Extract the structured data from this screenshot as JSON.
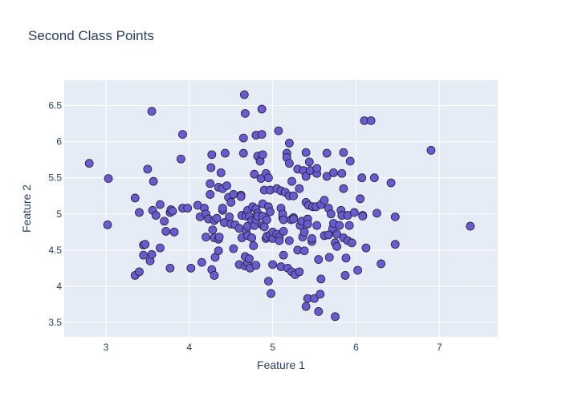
{
  "chart_data": {
    "type": "scatter",
    "title": "Second Class Points",
    "xlabel": "Feature 1",
    "ylabel": "Feature 2",
    "xlim": [
      2.5,
      7.7
    ],
    "ylim": [
      3.3,
      6.85
    ],
    "xticks": [
      3,
      4,
      5,
      6,
      7
    ],
    "yticks": [
      3.5,
      4,
      4.5,
      5,
      5.5,
      6,
      6.5
    ],
    "grid": true,
    "legend": "none",
    "colors": {
      "plot_bg": "#e5ecf6",
      "marker": "#6a5acd",
      "marker_edge": "#1f1f3a",
      "text": "#2a3f5f"
    },
    "series": [
      {
        "points": [
          [
            2.8,
            5.7
          ],
          [
            3.02,
            4.85
          ],
          [
            3.03,
            5.49
          ],
          [
            3.35,
            5.22
          ],
          [
            3.35,
            4.15
          ],
          [
            3.4,
            4.2
          ],
          [
            3.4,
            5.02
          ],
          [
            3.45,
            4.43
          ],
          [
            3.45,
            4.57
          ],
          [
            3.47,
            4.58
          ],
          [
            3.5,
            5.62
          ],
          [
            3.53,
            4.35
          ],
          [
            3.55,
            6.42
          ],
          [
            3.55,
            4.44
          ],
          [
            3.56,
            5.05
          ],
          [
            3.57,
            5.45
          ],
          [
            3.6,
            4.98
          ],
          [
            3.65,
            4.53
          ],
          [
            3.65,
            5.13
          ],
          [
            3.7,
            4.9
          ],
          [
            3.72,
            4.76
          ],
          [
            3.77,
            4.25
          ],
          [
            3.77,
            5.02
          ],
          [
            3.78,
            5.06
          ],
          [
            3.8,
            5.04
          ],
          [
            3.82,
            4.75
          ],
          [
            3.9,
            5.76
          ],
          [
            3.92,
            6.1
          ],
          [
            3.92,
            5.08
          ],
          [
            3.98,
            5.08
          ],
          [
            4.02,
            4.25
          ],
          [
            4.1,
            5.12
          ],
          [
            4.13,
            4.96
          ],
          [
            4.15,
            4.33
          ],
          [
            4.18,
            5.08
          ],
          [
            4.2,
            4.68
          ],
          [
            4.2,
            5.0
          ],
          [
            4.23,
            4.93
          ],
          [
            4.25,
            5.27
          ],
          [
            4.25,
            5.42
          ],
          [
            4.26,
            5.64
          ],
          [
            4.27,
            5.82
          ],
          [
            4.27,
            4.23
          ],
          [
            4.28,
            4.78
          ],
          [
            4.3,
            4.91
          ],
          [
            4.3,
            4.67
          ],
          [
            4.3,
            4.15
          ],
          [
            4.31,
            4.4
          ],
          [
            4.33,
            4.94
          ],
          [
            4.35,
            5.37
          ],
          [
            4.35,
            4.49
          ],
          [
            4.35,
            4.65
          ],
          [
            4.36,
            4.68
          ],
          [
            4.38,
            5.57
          ],
          [
            4.4,
            5.05
          ],
          [
            4.4,
            5.08
          ],
          [
            4.4,
            5.35
          ],
          [
            4.42,
            4.88
          ],
          [
            4.43,
            5.84
          ],
          [
            4.45,
            5.39
          ],
          [
            4.47,
            5.23
          ],
          [
            4.48,
            4.96
          ],
          [
            4.5,
            5.16
          ],
          [
            4.5,
            4.86
          ],
          [
            4.53,
            4.52
          ],
          [
            4.53,
            5.27
          ],
          [
            4.55,
            4.85
          ],
          [
            4.6,
            4.8
          ],
          [
            4.6,
            4.3
          ],
          [
            4.62,
            5.26
          ],
          [
            4.62,
            5.24
          ],
          [
            4.63,
            4.98
          ],
          [
            4.63,
            4.67
          ],
          [
            4.65,
            6.05
          ],
          [
            4.65,
            5.84
          ],
          [
            4.66,
            6.65
          ],
          [
            4.67,
            4.41
          ],
          [
            4.67,
            6.39
          ],
          [
            4.67,
            4.28
          ],
          [
            4.68,
            4.97
          ],
          [
            4.68,
            4.77
          ],
          [
            4.7,
            4.32
          ],
          [
            4.7,
            4.83
          ],
          [
            4.7,
            5.05
          ],
          [
            4.7,
            4.7
          ],
          [
            4.72,
            4.97
          ],
          [
            4.72,
            4.38
          ],
          [
            4.73,
            4.25
          ],
          [
            4.75,
            4.91
          ],
          [
            4.75,
            4.67
          ],
          [
            4.76,
            5.1
          ],
          [
            4.77,
            4.56
          ],
          [
            4.78,
            4.84
          ],
          [
            4.78,
            5.55
          ],
          [
            4.8,
            6.09
          ],
          [
            4.8,
            5.07
          ],
          [
            4.8,
            4.92
          ],
          [
            4.8,
            4.29
          ],
          [
            4.82,
            5.01
          ],
          [
            4.82,
            5.8
          ],
          [
            4.82,
            4.97
          ],
          [
            4.85,
            5.73
          ],
          [
            4.86,
            5.49
          ],
          [
            4.87,
            6.45
          ],
          [
            4.87,
            6.1
          ],
          [
            4.88,
            5.82
          ],
          [
            4.88,
            4.97
          ],
          [
            4.88,
            4.84
          ],
          [
            4.88,
            5.14
          ],
          [
            4.9,
            4.82
          ],
          [
            4.9,
            5.33
          ],
          [
            4.92,
            4.66
          ],
          [
            4.92,
            5.56
          ],
          [
            4.93,
            4.69
          ],
          [
            4.93,
            4.92
          ],
          [
            4.95,
            5.5
          ],
          [
            4.95,
            4.07
          ],
          [
            4.95,
            5.1
          ],
          [
            4.97,
            5.03
          ],
          [
            4.97,
            5.33
          ],
          [
            4.97,
            4.71
          ],
          [
            4.98,
            3.9
          ],
          [
            5.0,
            4.66
          ],
          [
            5.0,
            4.75
          ],
          [
            5.0,
            4.3
          ],
          [
            5.05,
            4.72
          ],
          [
            5.05,
            5.35
          ],
          [
            5.07,
            6.15
          ],
          [
            5.08,
            4.68
          ],
          [
            5.08,
            4.63
          ],
          [
            5.1,
            4.27
          ],
          [
            5.1,
            5.08
          ],
          [
            5.1,
            5.32
          ],
          [
            5.12,
            4.95
          ],
          [
            5.12,
            5.0
          ],
          [
            5.13,
            4.76
          ],
          [
            5.13,
            4.43
          ],
          [
            5.13,
            4.92
          ],
          [
            5.15,
            5.3
          ],
          [
            5.17,
            5.84
          ],
          [
            5.17,
            5.78
          ],
          [
            5.18,
            4.25
          ],
          [
            5.2,
            5.98
          ],
          [
            5.2,
            5.7
          ],
          [
            5.2,
            5.25
          ],
          [
            5.2,
            4.63
          ],
          [
            5.22,
            4.92
          ],
          [
            5.23,
            4.2
          ],
          [
            5.23,
            5.45
          ],
          [
            5.25,
            5.25
          ],
          [
            5.25,
            4.95
          ],
          [
            5.25,
            4.93
          ],
          [
            5.27,
            4.16
          ],
          [
            5.3,
            4.5
          ],
          [
            5.3,
            5.62
          ],
          [
            5.32,
            4.2
          ],
          [
            5.32,
            5.35
          ],
          [
            5.33,
            4.84
          ],
          [
            5.35,
            4.9
          ],
          [
            5.36,
            4.68
          ],
          [
            5.37,
            5.6
          ],
          [
            5.38,
            4.49
          ],
          [
            5.38,
            4.75
          ],
          [
            5.4,
            5.85
          ],
          [
            5.4,
            5.52
          ],
          [
            5.4,
            5.16
          ],
          [
            5.4,
            3.72
          ],
          [
            5.42,
            4.93
          ],
          [
            5.42,
            3.83
          ],
          [
            5.42,
            4.86
          ],
          [
            5.43,
            5.12
          ],
          [
            5.44,
            5.72
          ],
          [
            5.45,
            5.6
          ],
          [
            5.47,
            4.62
          ],
          [
            5.47,
            4.66
          ],
          [
            5.48,
            5.1
          ],
          [
            5.5,
            3.83
          ],
          [
            5.52,
            5.1
          ],
          [
            5.53,
            5.56
          ],
          [
            5.53,
            5.63
          ],
          [
            5.53,
            4.84
          ],
          [
            5.55,
            3.65
          ],
          [
            5.55,
            4.37
          ],
          [
            5.57,
            3.89
          ],
          [
            5.58,
            4.1
          ],
          [
            5.58,
            5.13
          ],
          [
            5.62,
            5.19
          ],
          [
            5.62,
            4.7
          ],
          [
            5.65,
            5.84
          ],
          [
            5.65,
            5.52
          ],
          [
            5.67,
            5.08
          ],
          [
            5.67,
            4.71
          ],
          [
            5.68,
            4.4
          ],
          [
            5.7,
            5.0
          ],
          [
            5.72,
            4.8
          ],
          [
            5.73,
            4.87
          ],
          [
            5.73,
            5.57
          ],
          [
            5.75,
            3.58
          ],
          [
            5.75,
            4.6
          ],
          [
            5.77,
            4.72
          ],
          [
            5.77,
            4.55
          ],
          [
            5.8,
            4.84
          ],
          [
            5.82,
            5.05
          ],
          [
            5.83,
            5.56
          ],
          [
            5.83,
            4.98
          ],
          [
            5.85,
            5.85
          ],
          [
            5.85,
            5.35
          ],
          [
            5.85,
            4.67
          ],
          [
            5.87,
            4.15
          ],
          [
            5.88,
            4.39
          ],
          [
            5.9,
            4.98
          ],
          [
            5.9,
            4.63
          ],
          [
            5.92,
            4.84
          ],
          [
            5.93,
            5.73
          ],
          [
            5.95,
            4.6
          ],
          [
            5.98,
            5.02
          ],
          [
            6.02,
            4.22
          ],
          [
            6.05,
            5.21
          ],
          [
            6.07,
            5.5
          ],
          [
            6.08,
            4.98
          ],
          [
            6.08,
            4.97
          ],
          [
            6.1,
            6.29
          ],
          [
            6.12,
            4.53
          ],
          [
            6.18,
            6.29
          ],
          [
            6.22,
            5.5
          ],
          [
            6.25,
            5.01
          ],
          [
            6.3,
            4.31
          ],
          [
            6.42,
            5.43
          ],
          [
            6.47,
            4.58
          ],
          [
            6.47,
            4.96
          ],
          [
            6.9,
            5.88
          ],
          [
            7.37,
            4.83
          ]
        ]
      }
    ]
  }
}
